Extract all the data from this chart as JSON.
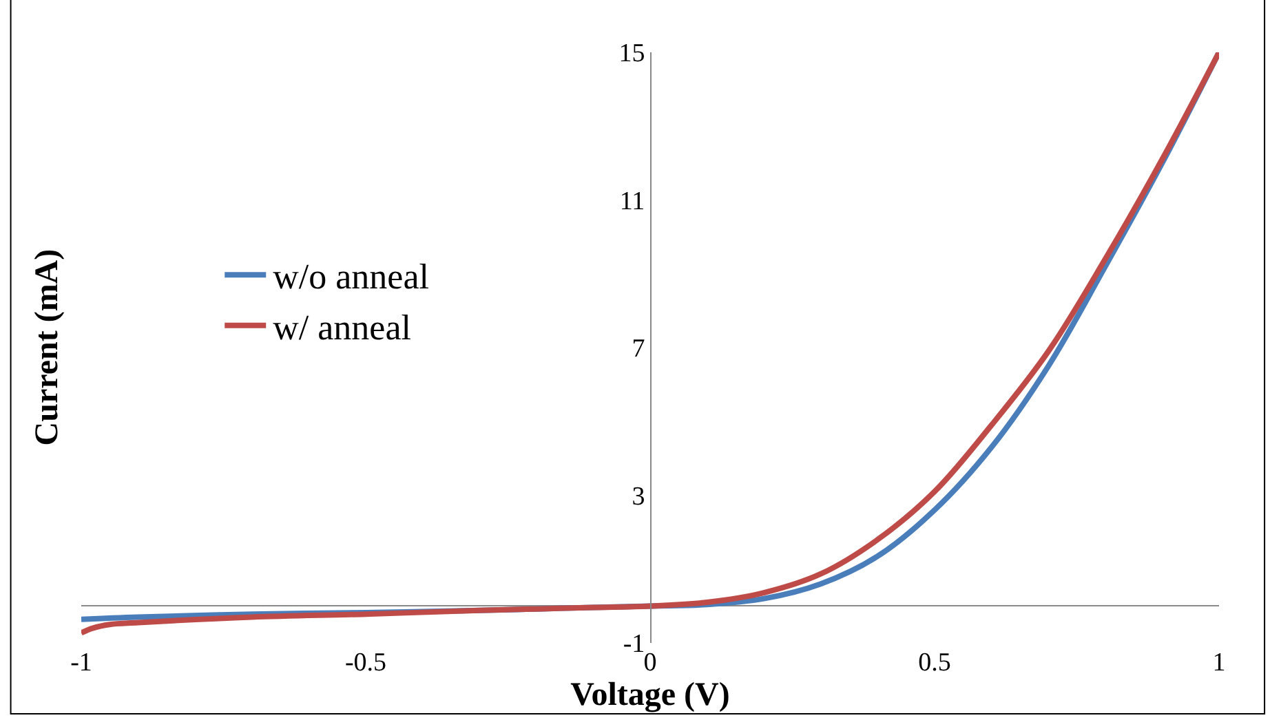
{
  "chart_data": {
    "type": "line",
    "xlabel": "Voltage (V)",
    "ylabel": "Current (mA)",
    "xlim": [
      -1,
      1
    ],
    "xticks": [
      -1,
      -0.5,
      0,
      0.5,
      1
    ],
    "ylim": [
      -1,
      15
    ],
    "yticks": [
      -1,
      3,
      7,
      11,
      15
    ],
    "legend": "left",
    "marker": "none",
    "line_style": "solid",
    "series": [
      {
        "name": "w/o anneal",
        "color": "#4a7ebb",
        "x": [
          -1,
          -0.9,
          -0.7,
          -0.5,
          -0.3,
          -0.2,
          -0.1,
          0,
          0.1,
          0.2,
          0.3,
          0.4,
          0.5,
          0.6,
          0.7,
          0.8,
          0.9,
          1
        ],
        "values": [
          -0.36,
          -0.3,
          -0.22,
          -0.18,
          -0.12,
          -0.08,
          -0.04,
          0,
          0.04,
          0.2,
          0.6,
          1.35,
          2.6,
          4.3,
          6.5,
          9.2,
          12.0,
          15
        ]
      },
      {
        "name": "w/ anneal",
        "color": "#be4b48",
        "x": [
          -1,
          -0.98,
          -0.95,
          -0.9,
          -0.7,
          -0.5,
          -0.3,
          -0.2,
          -0.1,
          0,
          0.1,
          0.2,
          0.3,
          0.4,
          0.5,
          0.6,
          0.7,
          0.8,
          0.9,
          1
        ],
        "values": [
          -0.73,
          -0.6,
          -0.5,
          -0.45,
          -0.3,
          -0.22,
          -0.12,
          -0.08,
          -0.04,
          0,
          0.1,
          0.36,
          0.87,
          1.8,
          3.1,
          4.9,
          6.9,
          9.4,
          12.1,
          15
        ]
      }
    ]
  }
}
